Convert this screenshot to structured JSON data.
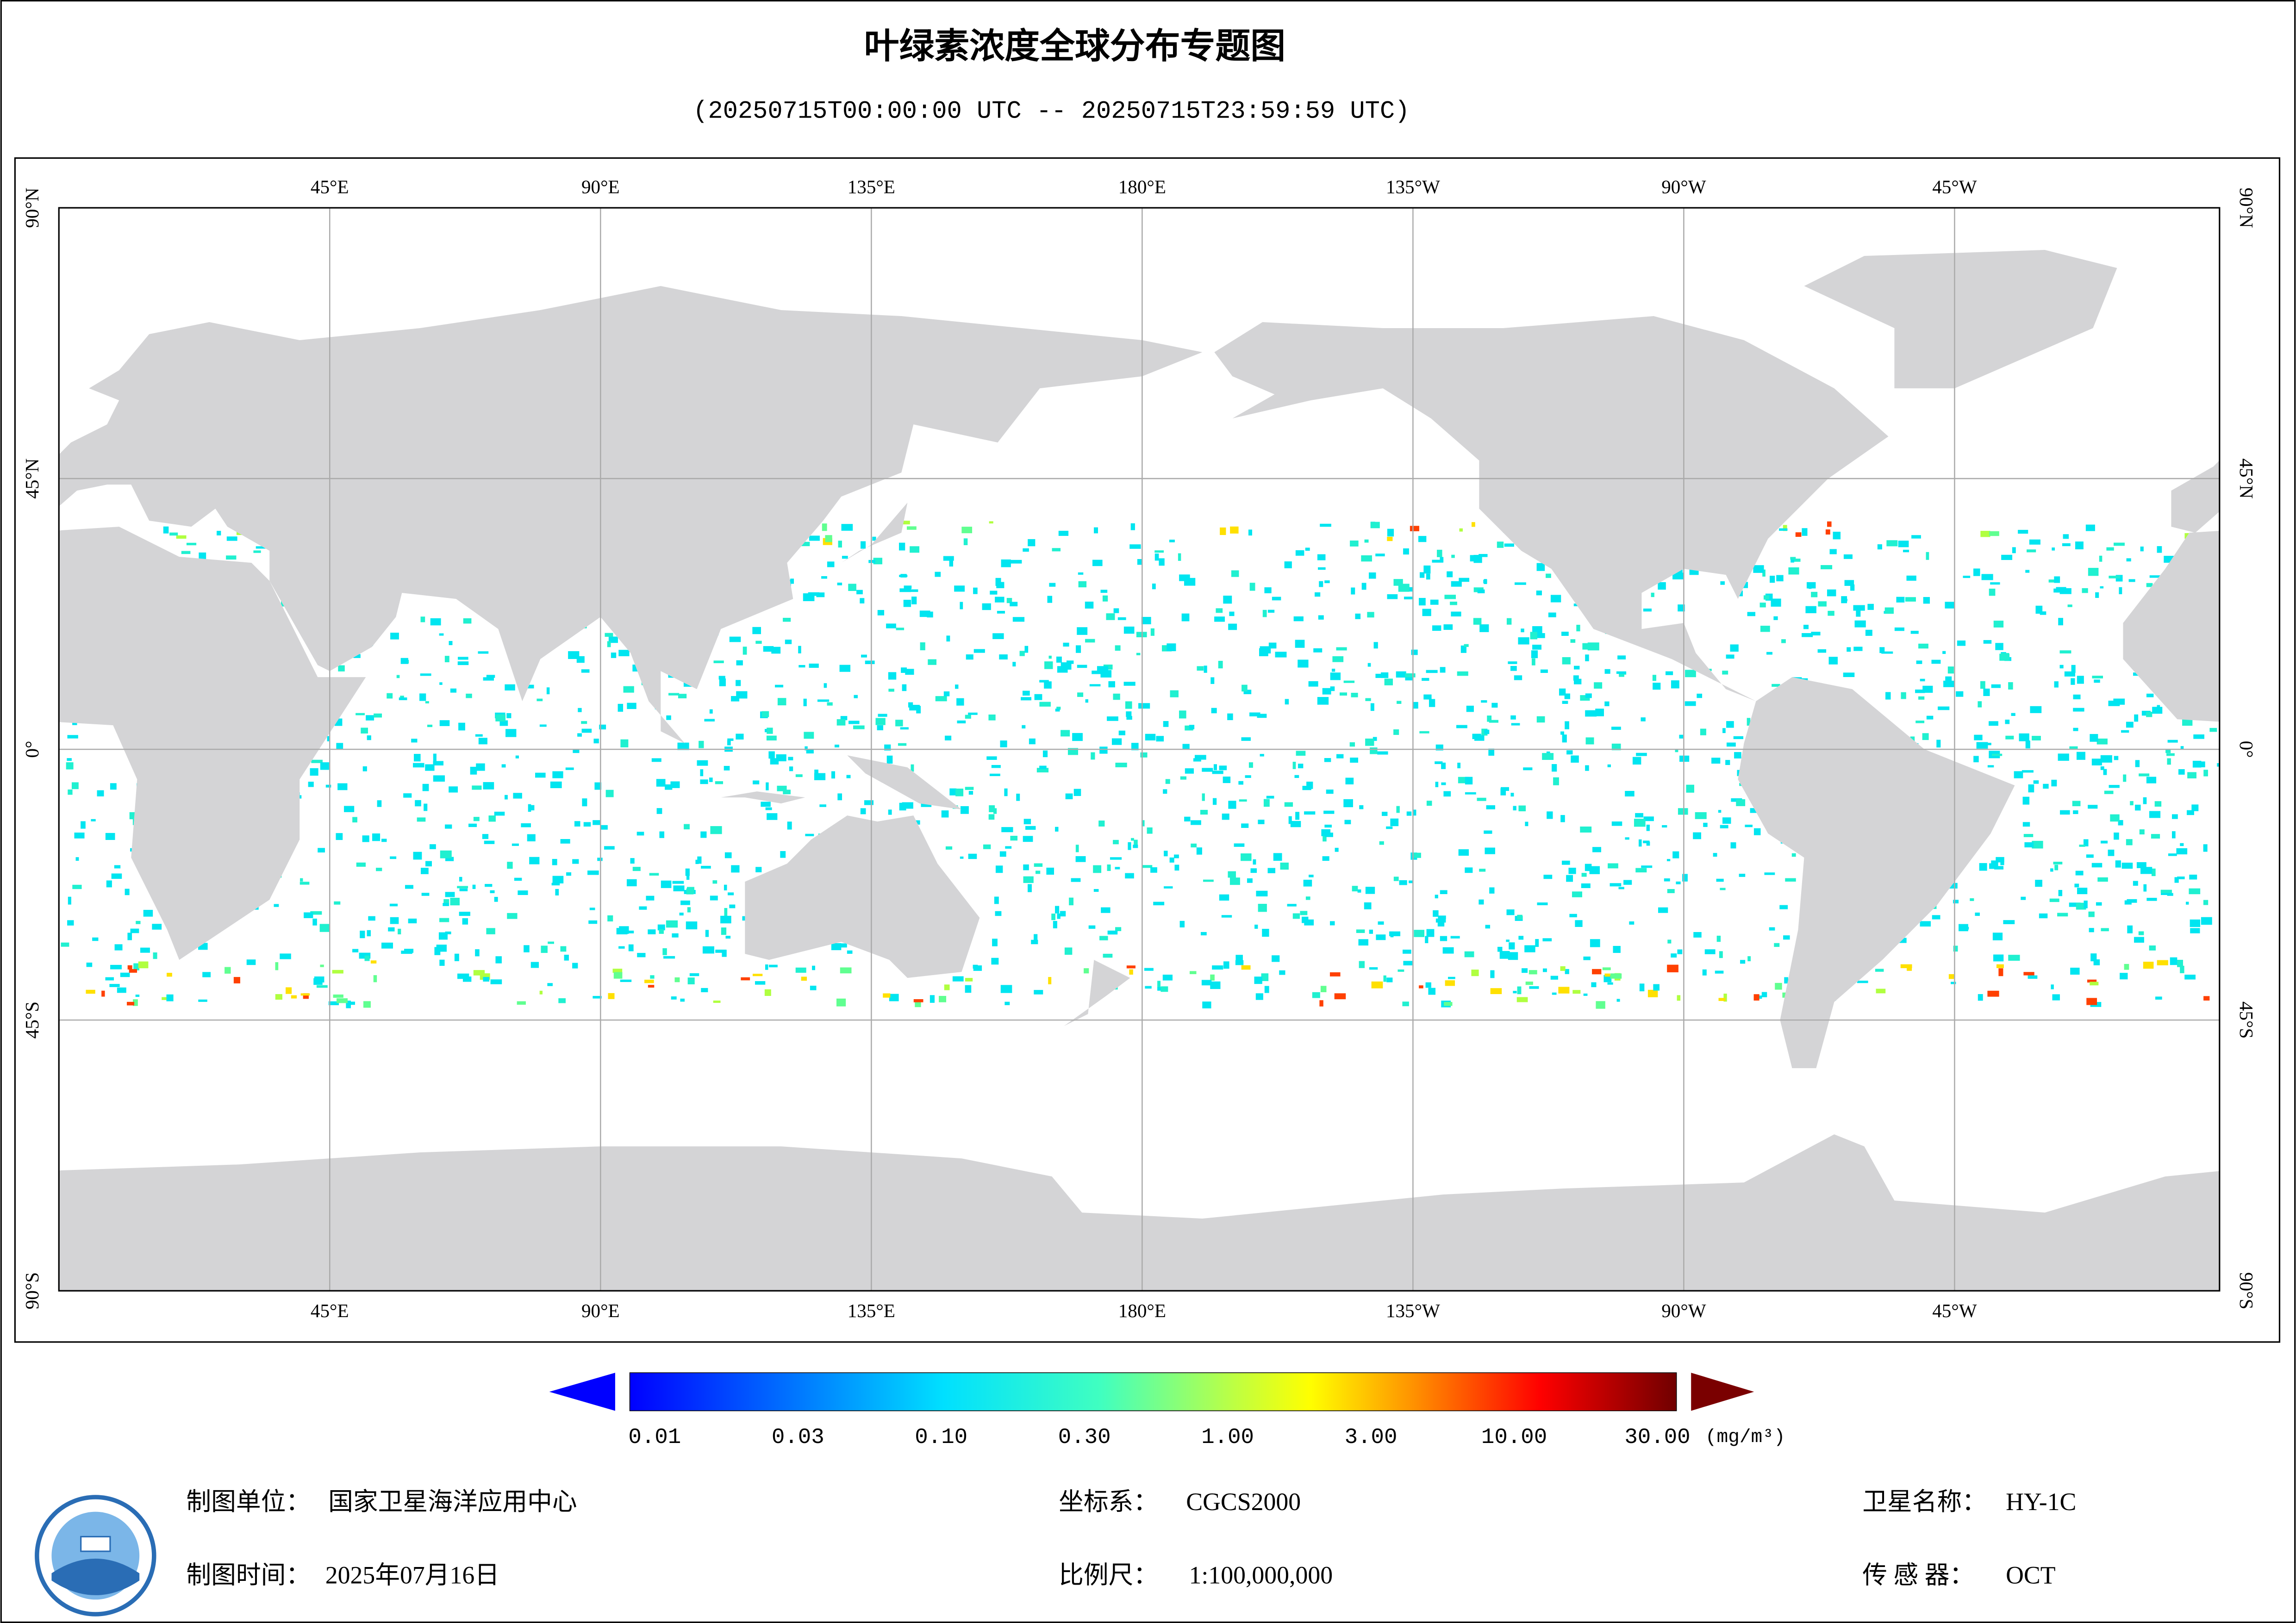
{
  "header": {
    "title": "叶绿素浓度全球分布专题图",
    "subtitle": "(20250715T00:00:00 UTC -- 20250715T23:59:59 UTC)"
  },
  "map": {
    "lon_labels": [
      "45°E",
      "90°E",
      "135°E",
      "180°E",
      "135°W",
      "90°W",
      "45°W"
    ],
    "lat_labels": [
      "90°N",
      "45°N",
      "0°",
      "45°S",
      "90°S"
    ]
  },
  "colorbar": {
    "ticks": [
      "0.01",
      "0.03",
      "0.10",
      "0.30",
      "1.00",
      "3.00",
      "10.00",
      "30.00"
    ],
    "unit": "(mg/m³)"
  },
  "footer": {
    "producer_label": "制图单位：",
    "producer": "国家卫星海洋应用中心",
    "date_label": "制图时间：",
    "date": "2025年07月16日",
    "crs_label": "坐标系：",
    "crs": "CGCS2000",
    "scale_label": "比例尺：",
    "scale": "1:100,000,000",
    "satellite_label": "卫星名称：",
    "satellite": "HY-1C",
    "sensor_label": "传 感 器：",
    "sensor": "OCT"
  }
}
